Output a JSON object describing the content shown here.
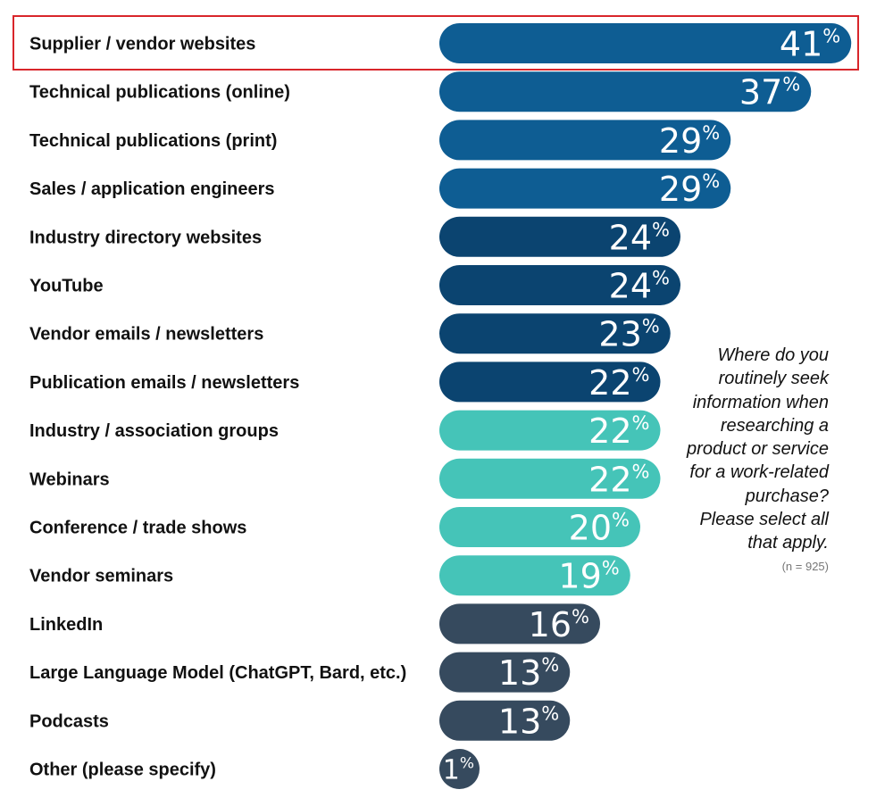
{
  "chart_data": {
    "type": "bar",
    "orientation": "horizontal",
    "categories": [
      "Supplier / vendor websites",
      "Technical publications (online)",
      "Technical publications (print)",
      "Sales / application engineers",
      "Industry directory websites",
      "YouTube",
      "Vendor emails / newsletters",
      "Publication emails / newsletters",
      "Industry / association groups",
      "Webinars",
      "Conference / trade shows",
      "Vendor seminars",
      "LinkedIn",
      "Large Language Model (ChatGPT, Bard, etc.)",
      "Podcasts",
      "Other (please specify)"
    ],
    "values": [
      41,
      37,
      29,
      29,
      24,
      24,
      23,
      22,
      22,
      22,
      20,
      19,
      16,
      13,
      13,
      1
    ],
    "value_suffix": "%",
    "bar_colors": [
      "#0e5d93",
      "#0e5d93",
      "#0e5d93",
      "#0e5d93",
      "#0b4470",
      "#0b4470",
      "#0b4470",
      "#0b4470",
      "#45c4b8",
      "#45c4b8",
      "#45c4b8",
      "#45c4b8",
      "#364a5e",
      "#364a5e",
      "#364a5e",
      "#364a5e"
    ],
    "highlighted_index": 0,
    "highlight_color": "#d9262b",
    "question_lines": [
      "Where do you",
      "routinely seek",
      "information when",
      "researching a",
      "product or service",
      "for a work-related",
      "purchase?",
      "Please select all",
      "that apply."
    ],
    "sample_note": "(n = 925)",
    "grid": false,
    "legend": "none"
  }
}
